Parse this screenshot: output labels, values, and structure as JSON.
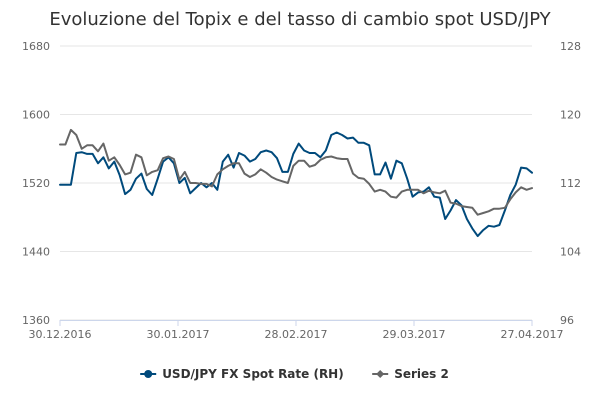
{
  "chart_data": {
    "type": "line",
    "title": "Evoluzione del Topix e del tasso di cambio spot USD/JPY",
    "xlabel": "",
    "ylabel": "",
    "x_ticks": [
      "30.12.2016",
      "30.01.2017",
      "28.02.2017",
      "29.03.2017",
      "27.04.2017"
    ],
    "y_left": {
      "min": 1360,
      "max": 1680,
      "ticks": [
        1360,
        1440,
        1520,
        1600,
        1680
      ]
    },
    "y_right": {
      "min": 96,
      "max": 128,
      "ticks": [
        96,
        104,
        112,
        120,
        128
      ]
    },
    "grid": true,
    "legend_position": "bottom-center",
    "series": [
      {
        "name": "USD/JPY FX Spot Rate (RH)",
        "axis": "left",
        "color": "#004a7c",
        "marker": "circle",
        "values": [
          1518,
          1518,
          1518,
          1555,
          1556,
          1554,
          1554,
          1543,
          1550,
          1537,
          1545,
          1529,
          1507,
          1512,
          1525,
          1531,
          1513,
          1506,
          1525,
          1545,
          1550,
          1543,
          1520,
          1526,
          1508,
          1514,
          1520,
          1515,
          1520,
          1512,
          1545,
          1553,
          1538,
          1555,
          1552,
          1545,
          1548,
          1556,
          1558,
          1556,
          1549,
          1533,
          1533,
          1554,
          1566,
          1558,
          1555,
          1555,
          1550,
          1558,
          1576,
          1579,
          1576,
          1572,
          1573,
          1567,
          1567,
          1564,
          1530,
          1530,
          1544,
          1525,
          1546,
          1543,
          1525,
          1504,
          1509,
          1510,
          1515,
          1504,
          1503,
          1478,
          1488,
          1500,
          1494,
          1478,
          1467,
          1458,
          1465,
          1470,
          1469,
          1471,
          1488,
          1506,
          1518,
          1538,
          1537,
          1532
        ]
      },
      {
        "name": "Series 2",
        "axis": "left",
        "color": "#666666",
        "marker": "diamond",
        "values": [
          1565,
          1565,
          1582,
          1576,
          1560,
          1564,
          1564,
          1557,
          1566,
          1546,
          1550,
          1541,
          1530,
          1532,
          1553,
          1550,
          1529,
          1533,
          1535,
          1549,
          1551,
          1548,
          1524,
          1533,
          1520,
          1520,
          1519,
          1519,
          1516,
          1530,
          1536,
          1540,
          1543,
          1543,
          1531,
          1527,
          1530,
          1536,
          1532,
          1527,
          1524,
          1522,
          1520,
          1540,
          1546,
          1546,
          1539,
          1541,
          1547,
          1550,
          1551,
          1549,
          1548,
          1548,
          1531,
          1526,
          1525,
          1519,
          1510,
          1512,
          1510,
          1504,
          1503,
          1510,
          1512,
          1512,
          1512,
          1508,
          1511,
          1509,
          1508,
          1511,
          1497,
          1496,
          1493,
          1492,
          1491,
          1483,
          1485,
          1487,
          1490,
          1490,
          1491,
          1501,
          1509,
          1515,
          1512,
          1514
        ]
      }
    ]
  },
  "legend": {
    "items": [
      {
        "label": "USD/JPY FX Spot Rate (RH)",
        "color": "#004a7c"
      },
      {
        "label": "Series 2",
        "color": "#666666"
      }
    ]
  }
}
